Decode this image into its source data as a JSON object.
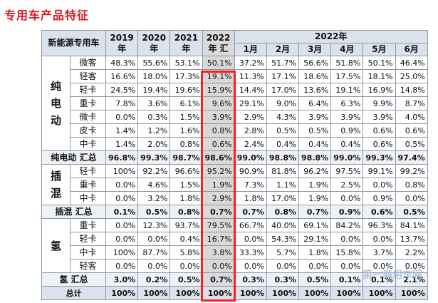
{
  "page": {
    "title": "专用车产品特征"
  },
  "header": {
    "corner": "新能源专用车",
    "years": [
      "2019年",
      "2020年",
      "2021年",
      "2022年 汇"
    ],
    "group_2022": "2022年",
    "months": [
      "1月",
      "2月",
      "3月",
      "4月",
      "5月",
      "6月"
    ]
  },
  "sections": [
    {
      "group": "纯电动",
      "rows": [
        {
          "label": "微客",
          "values": [
            "48.3%",
            "55.6%",
            "53.1%",
            "50.1%",
            "37.2%",
            "51.7%",
            "56.6%",
            "51.8%",
            "50.1%",
            "46.4%"
          ]
        },
        {
          "label": "轻客",
          "values": [
            "16.6%",
            "18.0%",
            "17.3%",
            "19.1%",
            "11.3%",
            "17.1%",
            "18.6%",
            "17.5%",
            "18.1%",
            "25.0%"
          ]
        },
        {
          "label": "轻卡",
          "values": [
            "24.5%",
            "19.4%",
            "19.6%",
            "15.9%",
            "14.4%",
            "17.0%",
            "13.6%",
            "19.1%",
            "16.9%",
            "14.8%"
          ]
        },
        {
          "label": "重卡",
          "values": [
            "7.8%",
            "3.6%",
            "6.1%",
            "9.6%",
            "29.1%",
            "9.0%",
            "6.4%",
            "6.3%",
            "9.9%",
            "8.7%"
          ]
        },
        {
          "label": "微卡",
          "values": [
            "0.0%",
            "0.3%",
            "1.5%",
            "3.9%",
            "2.9%",
            "4.3%",
            "3.9%",
            "3.9%",
            "3.9%",
            "4.0%"
          ]
        },
        {
          "label": "皮卡",
          "values": [
            "1.4%",
            "1.2%",
            "1.6%",
            "0.8%",
            "2.8%",
            "0.5%",
            "0.5%",
            "0.9%",
            "0.6%",
            "0.6%"
          ]
        },
        {
          "label": "中卡",
          "values": [
            "1.4%",
            "2.0%",
            "0.8%",
            "0.6%",
            "2.4%",
            "0.4%",
            "0.4%",
            "0.4%",
            "0.6%",
            "0.5%"
          ]
        }
      ],
      "summary": {
        "label": "纯电动 汇总",
        "values": [
          "96.8%",
          "99.3%",
          "98.7%",
          "98.6%",
          "99.0%",
          "98.8%",
          "98.8%",
          "99.0%",
          "99.3%",
          "97.4%"
        ]
      }
    },
    {
      "group": "插混",
      "rows": [
        {
          "label": "轻卡",
          "values": [
            "100%",
            "92.2%",
            "96.6%",
            "95.2%",
            "90.9%",
            "81.8%",
            "96.2%",
            "97.5%",
            "99.1%",
            "99.2%"
          ]
        },
        {
          "label": "重卡",
          "values": [
            "0.0%",
            "4.6%",
            "1.5%",
            "1.9%",
            "7.3%",
            "1.1%",
            "1.9%",
            "2.5%",
            "0.0%",
            "0.8%"
          ]
        },
        {
          "label": "中卡",
          "values": [
            "0.0%",
            "3.2%",
            "1.8%",
            "2.9%",
            "1.8%",
            "17.0%",
            "1.9%",
            "0.0%",
            "0.9%",
            "0.0%"
          ]
        }
      ],
      "summary": {
        "label": "插混 汇总",
        "values": [
          "0.1%",
          "0.5%",
          "0.8%",
          "0.7%",
          "0.7%",
          "0.8%",
          "0.7%",
          "0.9%",
          "0.6%",
          "0.5%"
        ]
      }
    },
    {
      "group": "氢",
      "rows": [
        {
          "label": "重卡",
          "values": [
            "0.0%",
            "12.3%",
            "93.7%",
            "79.5%",
            "66.7%",
            "40.0%",
            "69.1%",
            "84.2%",
            "96.3%",
            "84.1%"
          ]
        },
        {
          "label": "轻卡",
          "values": [
            "0.0%",
            "0.0%",
            "0.4%",
            "16.7%",
            "0.0%",
            "54.3%",
            "29.1%",
            "0.0%",
            "0.0%",
            "13.7%"
          ]
        },
        {
          "label": "中卡",
          "values": [
            "100%",
            "87.7%",
            "5.8%",
            "3.8%",
            "33.3%",
            "5.7%",
            "1.8%",
            "15.8%",
            "3.7%",
            "2.2%"
          ]
        },
        {
          "label": "轻客",
          "values": [
            "0.0%",
            "0.0%",
            "0.0%",
            "0.0%",
            "0.0%",
            "0.0%",
            "0.0%",
            "0.0%",
            "0.0%",
            "0.0%"
          ]
        }
      ],
      "summary": {
        "label": "氢 汇总",
        "values": [
          "3.0%",
          "0.2%",
          "0.5%",
          "0.7%",
          "0.3%",
          "0.3%",
          "0.5%",
          "0.1%",
          "0.1%",
          "2.1%"
        ]
      }
    }
  ],
  "total": {
    "label": "总计",
    "values": [
      "100%",
      "100%",
      "100%",
      "100%",
      "100%",
      "100%",
      "100%",
      "100%",
      "100%",
      "100%"
    ]
  },
  "colors": {
    "title": "#e0171f",
    "highlight_border": "#ff1e1e",
    "header_bg": "#dbe2ec",
    "highlight_cell": "#d9d9d9"
  },
  "watermark": "第一商用车网"
}
